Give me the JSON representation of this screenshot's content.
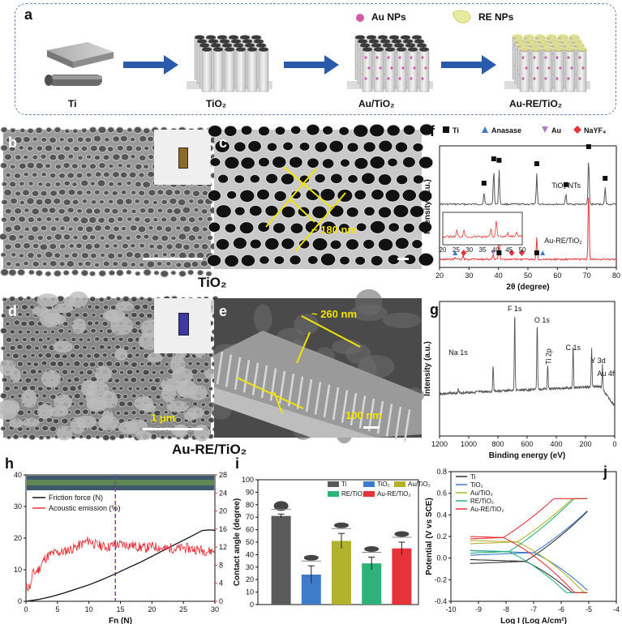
{
  "panel_labels": {
    "a": "a",
    "b": "b",
    "c": "c",
    "d": "d",
    "e": "e",
    "f": "f",
    "g": "g",
    "h": "h",
    "i": "i",
    "j": "j"
  },
  "schematic": {
    "legend_au": "Au NPs",
    "legend_re": "RE NPs",
    "stages": [
      "Ti",
      "TiO₂",
      "Au/TiO₂",
      "Au-RE/TiO₂"
    ],
    "colors": {
      "arrow": "#2b5aa8",
      "au": "#d35aa6",
      "re": "#e7e9a0"
    }
  },
  "sem": {
    "c_size": "~ 180 nm",
    "e_size": "~ 260 nm",
    "d_scale": "1 μm",
    "e_scale": "100 nm",
    "caption_top": "TiO₂",
    "caption_bottom": "Au-RE/TiO₂"
  },
  "chart_data": [
    {
      "panel": "f",
      "type": "line",
      "xlabel": "2θ (degree)",
      "ylabel": "Intensity (a.u.)",
      "xlim": [
        20,
        80
      ],
      "xticks": [
        20,
        30,
        40,
        50,
        60,
        70,
        80
      ],
      "legend": [
        {
          "name": "Ti",
          "marker": "square",
          "color": "#111111"
        },
        {
          "name": "Anasase",
          "marker": "triangle",
          "color": "#3d7cc9"
        },
        {
          "name": "Au",
          "marker": "triangle-down",
          "color": "#b07cc6"
        },
        {
          "name": "NaYF₄",
          "marker": "diamond",
          "color": "#e6333a"
        }
      ],
      "series": [
        {
          "name": "TiO₂ NTs",
          "color": "#555555",
          "peaks": [
            [
              35.1,
              0.25
            ],
            [
              38.4,
              0.75
            ],
            [
              40.2,
              0.72
            ],
            [
              53.0,
              0.65
            ],
            [
              62.9,
              0.22
            ],
            [
              70.6,
              1.0
            ],
            [
              76.2,
              0.35
            ]
          ]
        },
        {
          "name": "Au-RE/TiO₂",
          "color": "#e6333a",
          "peaks": [
            [
              25.3,
              0.05
            ],
            [
              28.0,
              0.08
            ],
            [
              38.2,
              0.12
            ],
            [
              40.2,
              0.55
            ],
            [
              53.0,
              0.45
            ],
            [
              70.6,
              1.5
            ]
          ]
        }
      ],
      "inset": {
        "xlim": [
          20,
          50
        ],
        "xticks": [
          20,
          25,
          30,
          35,
          40,
          45,
          50
        ]
      },
      "peak_markers": {
        "top": [
          {
            "x": 35.1,
            "m": "Ti"
          },
          {
            "x": 38.4,
            "m": "Ti"
          },
          {
            "x": 40.2,
            "m": "Ti"
          },
          {
            "x": 53.0,
            "m": "Ti"
          },
          {
            "x": 62.9,
            "m": "Ti"
          },
          {
            "x": 70.6,
            "m": "Ti"
          },
          {
            "x": 76.2,
            "m": "Ti"
          }
        ],
        "bottom": [
          {
            "x": 25.3,
            "m": "Anasase"
          },
          {
            "x": 28.2,
            "m": "NaYF₄"
          },
          {
            "x": 38.2,
            "m": "Au"
          },
          {
            "x": 40.2,
            "m": "Ti"
          },
          {
            "x": 44.5,
            "m": "NaYF₄"
          },
          {
            "x": 47.9,
            "m": "NaYF₄"
          },
          {
            "x": 53.0,
            "m": "Ti"
          },
          {
            "x": 55.0,
            "m": "Anasase"
          }
        ]
      }
    },
    {
      "panel": "g",
      "type": "line",
      "xlabel": "Binding energy (eV)",
      "ylabel": "Intensity (a.u.)",
      "xlim": [
        1200,
        0
      ],
      "xticks": [
        1200,
        1000,
        800,
        600,
        400,
        200,
        0
      ],
      "annotations": [
        {
          "text": "Na 1s",
          "x": 1072
        },
        {
          "text": "F 1s",
          "x": 685
        },
        {
          "text": "O 1s",
          "x": 531
        },
        {
          "text": "Ti 2p",
          "x": 459
        },
        {
          "text": "C 1s",
          "x": 285
        },
        {
          "text": "Y 3d",
          "x": 158
        },
        {
          "text": "Au 4f",
          "x": 84
        }
      ],
      "peaks": [
        [
          1072,
          0.05
        ],
        [
          833,
          0.35
        ],
        [
          685,
          1.0
        ],
        [
          531,
          0.85
        ],
        [
          459,
          0.3
        ],
        [
          285,
          0.55
        ],
        [
          158,
          0.5
        ],
        [
          84,
          0.32
        ]
      ]
    },
    {
      "panel": "h",
      "type": "line",
      "xlabel": "Fn (N)",
      "ylabel_left": "",
      "ylabel_right": "",
      "xlim": [
        0,
        30
      ],
      "ylim_left": [
        0,
        40
      ],
      "ylim_right": [
        0,
        28
      ],
      "xticks": [
        0,
        5,
        10,
        15,
        20,
        25,
        30
      ],
      "yticks_left": [
        0,
        10,
        20,
        30,
        40
      ],
      "yticks_right": [
        0,
        4,
        8,
        12,
        16,
        20,
        24,
        28
      ],
      "critical_x": 14.2,
      "series": [
        {
          "name": "Friction force (N)",
          "color": "#111111",
          "x": [
            0,
            2,
            4,
            6,
            8,
            10,
            12,
            14,
            16,
            18,
            20,
            22,
            24,
            26,
            28,
            29,
            30
          ],
          "y": [
            0,
            0.6,
            1.5,
            2.6,
            3.9,
            5.2,
            6.8,
            8.5,
            10.4,
            12.2,
            14.2,
            16.3,
            18.3,
            20.3,
            22.4,
            22.6,
            22.5
          ]
        },
        {
          "name": "Acoustic emission (%)",
          "color": "#e6333a",
          "x": [
            0,
            0.8,
            1,
            1.5,
            2,
            3,
            4,
            5,
            6,
            7,
            8,
            9,
            10,
            11,
            12,
            13,
            14,
            15,
            16,
            17,
            18,
            19,
            20,
            21,
            22,
            23,
            24,
            25,
            26,
            27,
            28,
            29,
            30
          ],
          "y": [
            3,
            3.5,
            6,
            6.5,
            7,
            9.5,
            10.5,
            10.8,
            11,
            11.5,
            12,
            12.8,
            13.5,
            12.6,
            12.3,
            12,
            12.5,
            12.6,
            12.5,
            12.4,
            12,
            11.8,
            12.2,
            12,
            11.6,
            11.8,
            11.6,
            11.9,
            11.7,
            11.5,
            11.3,
            11.1,
            11.2
          ]
        }
      ]
    },
    {
      "panel": "i",
      "type": "bar",
      "ylabel": "Contact angle (degree)",
      "ylim": [
        0,
        100
      ],
      "yticks": [
        0,
        10,
        20,
        30,
        40,
        50,
        60,
        70,
        80,
        90,
        100
      ],
      "categories": [
        "Ti",
        "TiO₂",
        "Au/TiO₂",
        "RE/TiO₂",
        "Au-RE/TiO₂"
      ],
      "values": [
        71,
        24,
        51,
        33,
        45
      ],
      "errors": [
        1.5,
        7,
        6,
        5,
        5
      ],
      "colors": [
        "#5a5a5a",
        "#3d7cc9",
        "#b3b22c",
        "#2db37a",
        "#e6333a"
      ]
    },
    {
      "panel": "j",
      "type": "line",
      "xlabel": "Log I (Log A/cm²)",
      "ylabel": "Potential (V vs SCE)",
      "xlim": [
        -10,
        -4
      ],
      "ylim": [
        -0.4,
        0.8
      ],
      "xticks": [
        -10,
        -9,
        -8,
        -7,
        -6,
        -5,
        -4
      ],
      "yticks": [
        -0.4,
        -0.2,
        0.0,
        0.2,
        0.4,
        0.6,
        0.8
      ],
      "series": [
        {
          "name": "Ti",
          "color": "#333333",
          "ecorr": -0.03,
          "icorr": -7.3
        },
        {
          "name": "TiO₂",
          "color": "#3d7cc9",
          "ecorr": 0.05,
          "icorr": -7.0
        },
        {
          "name": "Au/TiO₂",
          "color": "#b3b22c",
          "ecorr": 0.15,
          "icorr": -7.6
        },
        {
          "name": "RE/TiO₂",
          "color": "#2db37a",
          "ecorr": 0.06,
          "icorr": -7.9
        },
        {
          "name": "Au-RE/TiO₂",
          "color": "#e6333a",
          "ecorr": 0.19,
          "icorr": -8.1
        }
      ]
    }
  ]
}
